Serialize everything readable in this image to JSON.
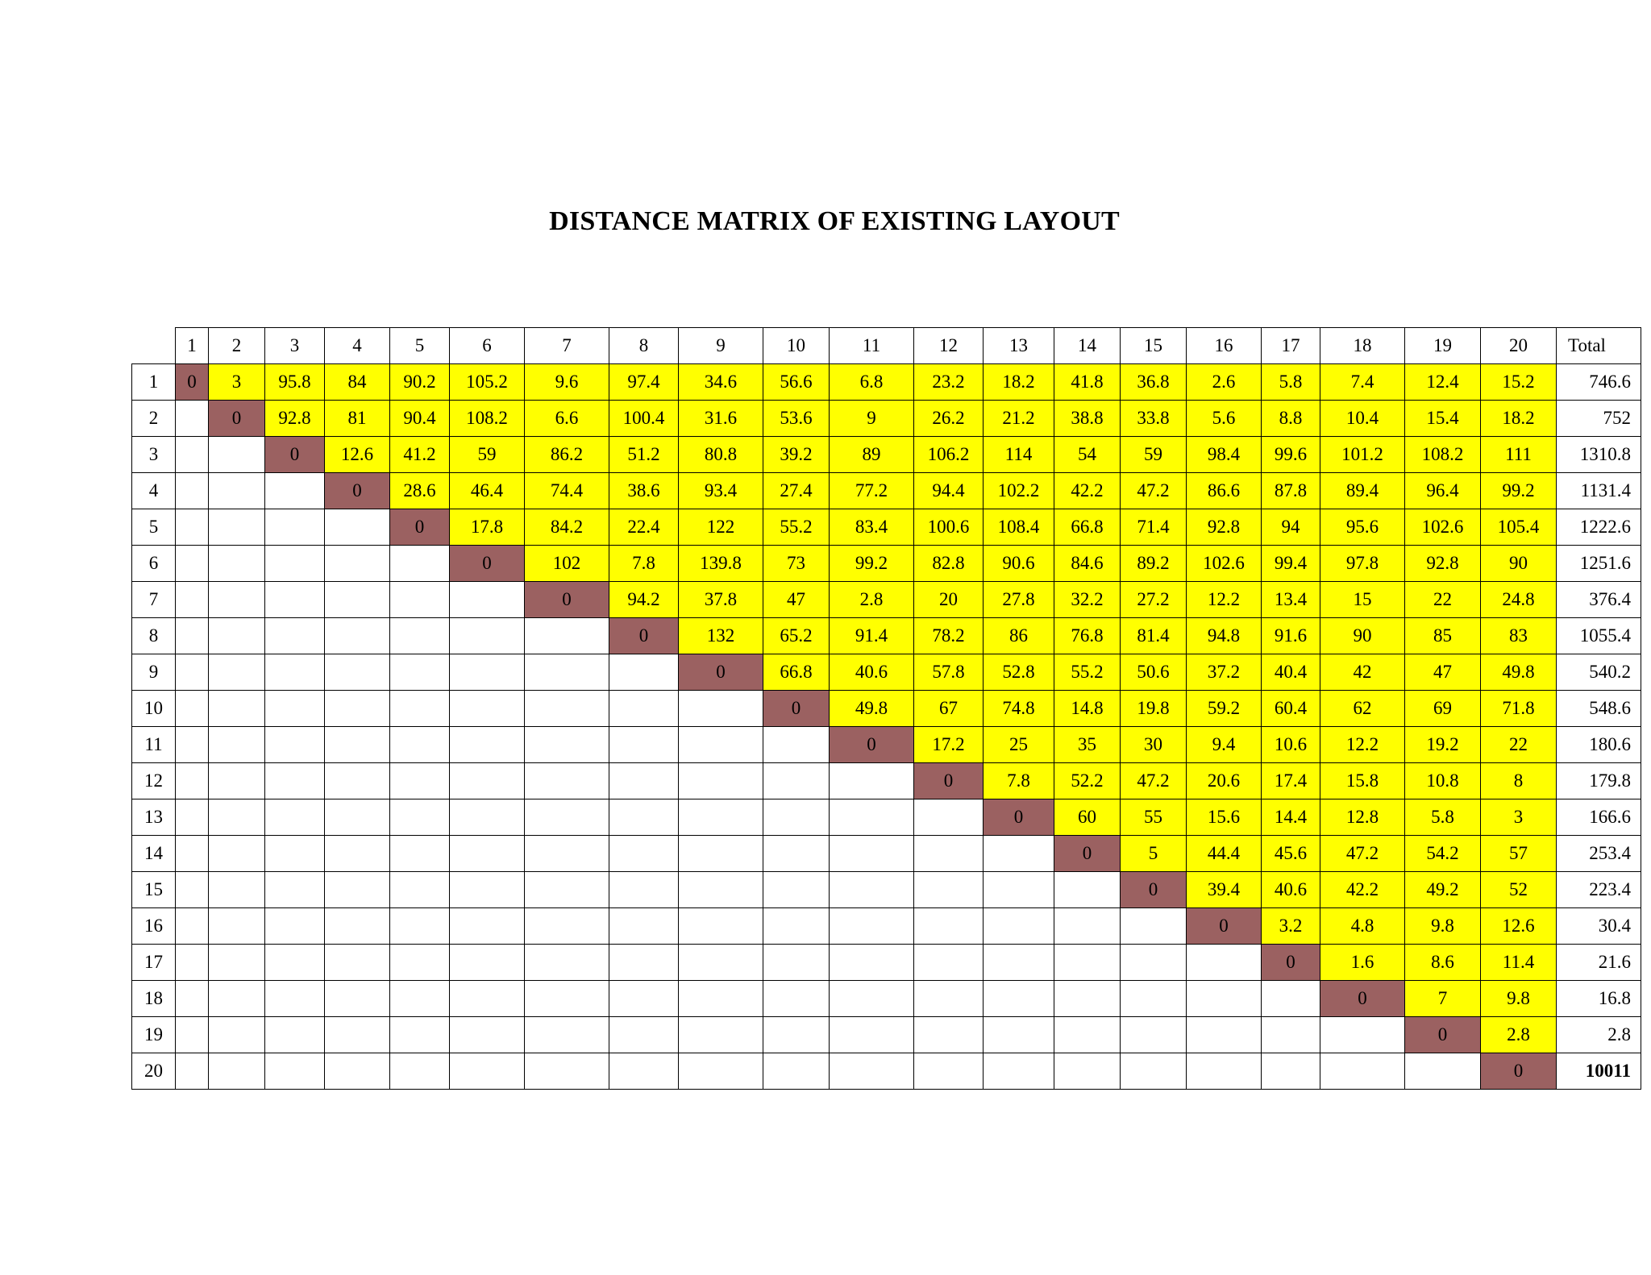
{
  "title": "DISTANCE MATRIX OF EXISTING LAYOUT",
  "colors": {
    "upper_cell": "#ffff00",
    "diagonal_cell": "#9b6161",
    "grid": "#000000"
  },
  "matrix": {
    "column_headers": [
      "1",
      "2",
      "3",
      "4",
      "5",
      "6",
      "7",
      "8",
      "9",
      "10",
      "11",
      "12",
      "13",
      "14",
      "15",
      "16",
      "17",
      "18",
      "19",
      "20",
      "Total"
    ],
    "row_headers": [
      "1",
      "2",
      "3",
      "4",
      "5",
      "6",
      "7",
      "8",
      "9",
      "10",
      "11",
      "12",
      "13",
      "14",
      "15",
      "16",
      "17",
      "18",
      "19",
      "20"
    ],
    "rows": [
      [
        "0",
        "3",
        "95.8",
        "84",
        "90.2",
        "105.2",
        "9.6",
        "97.4",
        "34.6",
        "56.6",
        "6.8",
        "23.2",
        "18.2",
        "41.8",
        "36.8",
        "2.6",
        "5.8",
        "7.4",
        "12.4",
        "15.2"
      ],
      [
        "0",
        "92.8",
        "81",
        "90.4",
        "108.2",
        "6.6",
        "100.4",
        "31.6",
        "53.6",
        "9",
        "26.2",
        "21.2",
        "38.8",
        "33.8",
        "5.6",
        "8.8",
        "10.4",
        "15.4",
        "18.2"
      ],
      [
        "0",
        "12.6",
        "41.2",
        "59",
        "86.2",
        "51.2",
        "80.8",
        "39.2",
        "89",
        "106.2",
        "114",
        "54",
        "59",
        "98.4",
        "99.6",
        "101.2",
        "108.2",
        "111"
      ],
      [
        "0",
        "28.6",
        "46.4",
        "74.4",
        "38.6",
        "93.4",
        "27.4",
        "77.2",
        "94.4",
        "102.2",
        "42.2",
        "47.2",
        "86.6",
        "87.8",
        "89.4",
        "96.4",
        "99.2"
      ],
      [
        "0",
        "17.8",
        "84.2",
        "22.4",
        "122",
        "55.2",
        "83.4",
        "100.6",
        "108.4",
        "66.8",
        "71.4",
        "92.8",
        "94",
        "95.6",
        "102.6",
        "105.4"
      ],
      [
        "0",
        "102",
        "7.8",
        "139.8",
        "73",
        "99.2",
        "82.8",
        "90.6",
        "84.6",
        "89.2",
        "102.6",
        "99.4",
        "97.8",
        "92.8",
        "90"
      ],
      [
        "0",
        "94.2",
        "37.8",
        "47",
        "2.8",
        "20",
        "27.8",
        "32.2",
        "27.2",
        "12.2",
        "13.4",
        "15",
        "22",
        "24.8"
      ],
      [
        "0",
        "132",
        "65.2",
        "91.4",
        "78.2",
        "86",
        "76.8",
        "81.4",
        "94.8",
        "91.6",
        "90",
        "85",
        "83"
      ],
      [
        "0",
        "66.8",
        "40.6",
        "57.8",
        "52.8",
        "55.2",
        "50.6",
        "37.2",
        "40.4",
        "42",
        "47",
        "49.8"
      ],
      [
        "0",
        "49.8",
        "67",
        "74.8",
        "14.8",
        "19.8",
        "59.2",
        "60.4",
        "62",
        "69",
        "71.8"
      ],
      [
        "0",
        "17.2",
        "25",
        "35",
        "30",
        "9.4",
        "10.6",
        "12.2",
        "19.2",
        "22"
      ],
      [
        "0",
        "7.8",
        "52.2",
        "47.2",
        "20.6",
        "17.4",
        "15.8",
        "10.8",
        "8"
      ],
      [
        "0",
        "60",
        "55",
        "15.6",
        "14.4",
        "12.8",
        "5.8",
        "3"
      ],
      [
        "0",
        "5",
        "44.4",
        "45.6",
        "47.2",
        "54.2",
        "57"
      ],
      [
        "0",
        "39.4",
        "40.6",
        "42.2",
        "49.2",
        "52"
      ],
      [
        "0",
        "3.2",
        "4.8",
        "9.8",
        "12.6"
      ],
      [
        "0",
        "1.6",
        "8.6",
        "11.4"
      ],
      [
        "0",
        "7",
        "9.8"
      ],
      [
        "0",
        "2.8"
      ],
      [
        "0"
      ]
    ],
    "totals": [
      "746.6",
      "752",
      "1310.8",
      "1131.4",
      "1222.6",
      "1251.6",
      "376.4",
      "1055.4",
      "540.2",
      "548.6",
      "180.6",
      "179.8",
      "166.6",
      "253.4",
      "223.4",
      "30.4",
      "21.6",
      "16.8",
      "2.8",
      "10011"
    ]
  }
}
